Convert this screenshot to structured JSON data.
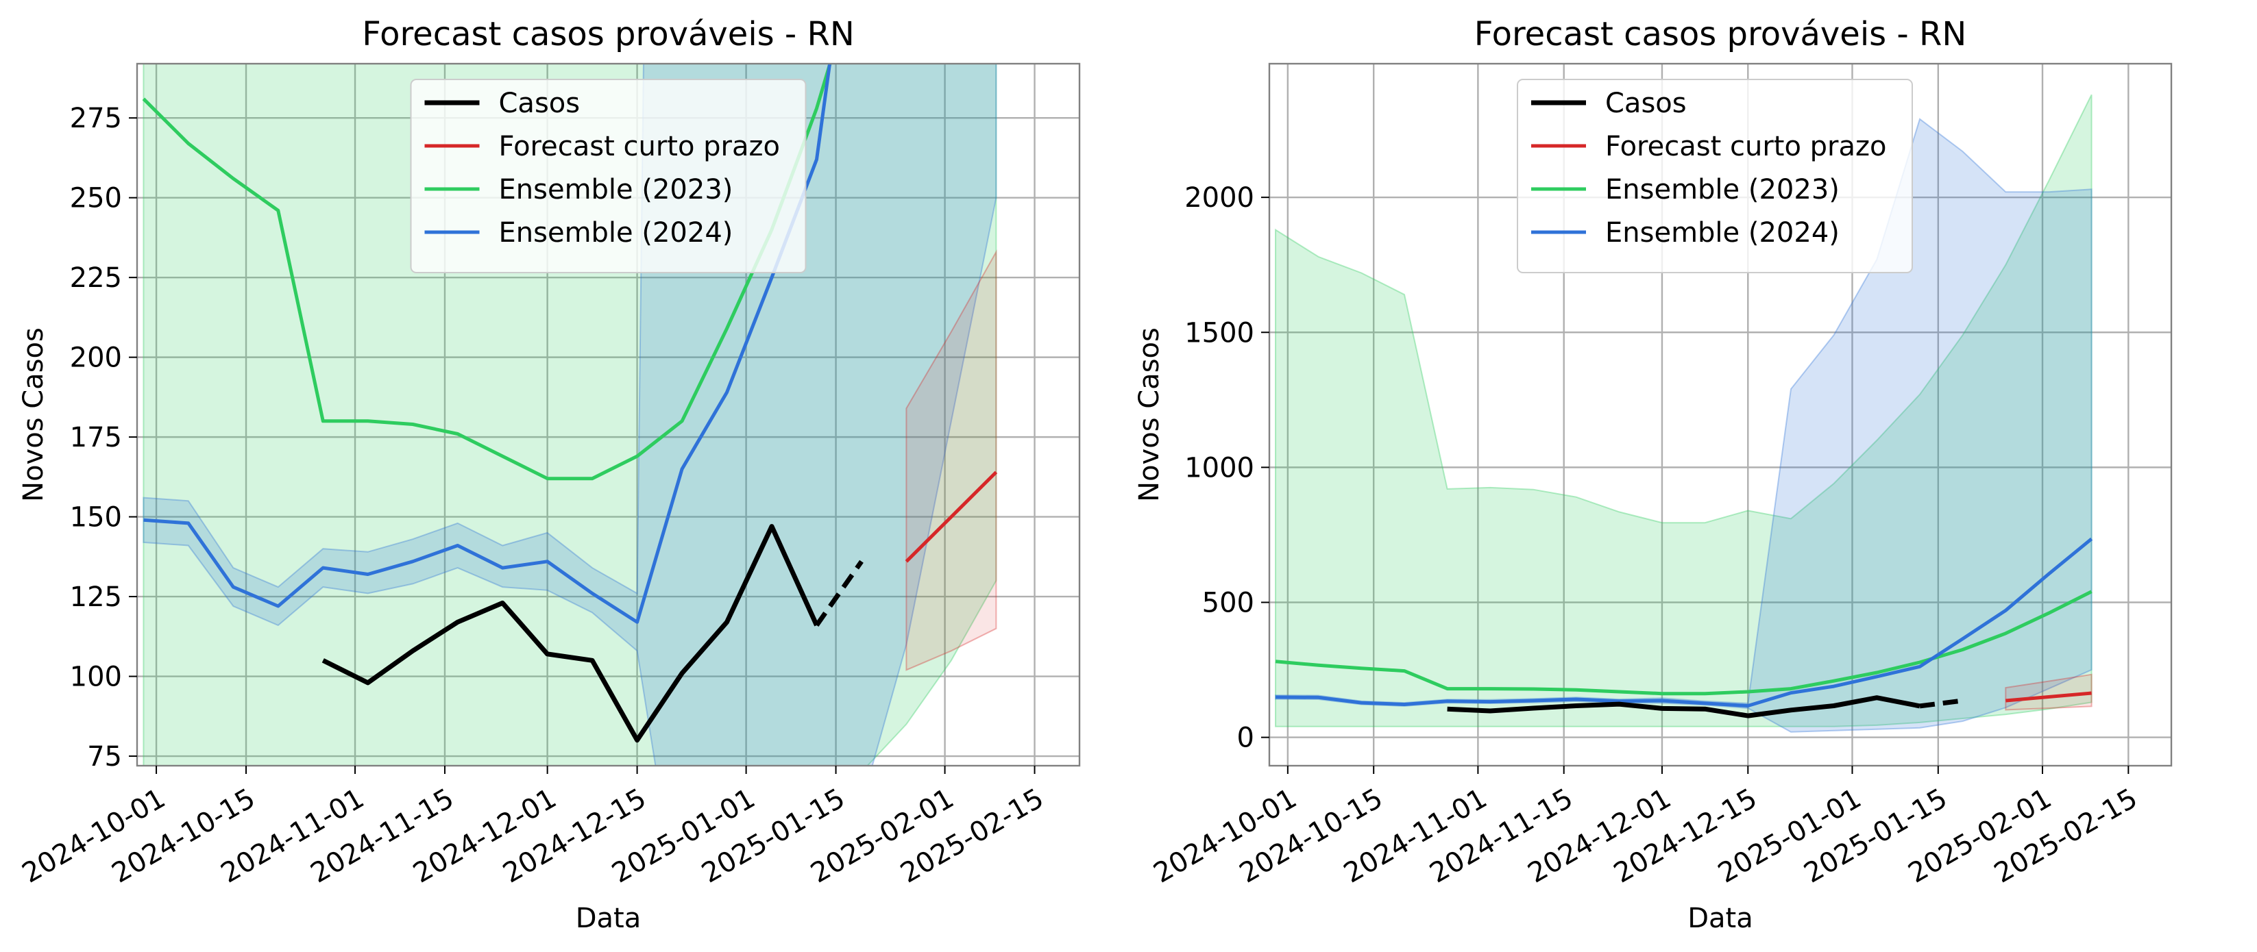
{
  "chart_data": [
    {
      "type": "line",
      "title": "Forecast casos prováveis - RN",
      "xlabel": "Data",
      "ylabel": "Novos Casos",
      "ylim": [
        72,
        292
      ],
      "xlim": [
        "2024-09-28",
        "2025-02-22"
      ],
      "x_ticks": [
        "2024-10-01",
        "2024-10-15",
        "2024-11-01",
        "2024-11-15",
        "2024-12-01",
        "2024-12-15",
        "2025-01-01",
        "2025-01-15",
        "2025-02-01",
        "2025-02-15"
      ],
      "y_ticks": [
        75,
        100,
        125,
        150,
        175,
        200,
        225,
        250,
        275
      ],
      "grid": true,
      "legend_position": "top-center",
      "legend": [
        "Casos",
        "Forecast curto prazo",
        "Ensemble (2023)",
        "Ensemble (2024)"
      ],
      "colors": {
        "casos": "#000000",
        "forecast": "#d62728",
        "ens2023": "#2ecc5f",
        "ens2024": "#2f72d8"
      },
      "series": {
        "casos": {
          "x": [
            "2024-10-27",
            "2024-11-03",
            "2024-11-10",
            "2024-11-17",
            "2024-11-24",
            "2024-12-01",
            "2024-12-08",
            "2024-12-15",
            "2024-12-22",
            "2024-12-29",
            "2025-01-05",
            "2025-01-12",
            "2025-01-19"
          ],
          "y": [
            105,
            98,
            108,
            117,
            123,
            107,
            105,
            80,
            101,
            117,
            147,
            116,
            136
          ]
        },
        "forecast": {
          "x": [
            "2025-01-26",
            "2025-02-02",
            "2025-02-09"
          ],
          "y": [
            136,
            150,
            164
          ],
          "lower": [
            102,
            108,
            115
          ],
          "upper": [
            184,
            208,
            233
          ]
        },
        "ens2023": {
          "x": [
            "2024-09-29",
            "2024-10-06",
            "2024-10-13",
            "2024-10-20",
            "2024-10-27",
            "2024-11-03",
            "2024-11-10",
            "2024-11-17",
            "2024-11-24",
            "2024-12-01",
            "2024-12-08",
            "2024-12-15",
            "2024-12-22",
            "2024-12-29",
            "2025-01-05",
            "2025-01-12",
            "2025-01-19",
            "2025-01-26",
            "2025-02-02",
            "2025-02-09"
          ],
          "y": [
            281,
            267,
            256,
            246,
            180,
            180,
            179,
            176,
            169,
            162,
            162,
            169,
            180,
            209,
            240,
            278,
            325,
            385,
            460,
            540
          ],
          "lower": [
            40,
            40,
            40,
            40,
            40,
            40,
            40,
            40,
            40,
            40,
            40,
            40,
            40,
            40,
            45,
            55,
            70,
            85,
            105,
            130
          ],
          "upper": [
            1880,
            1780,
            1720,
            1640,
            920,
            925,
            918,
            890,
            835,
            795,
            795,
            840,
            810,
            940,
            1100,
            1270,
            1490,
            1750,
            2060,
            2380
          ]
        },
        "ens2024": {
          "x": [
            "2024-09-29",
            "2024-10-06",
            "2024-10-13",
            "2024-10-20",
            "2024-10-27",
            "2024-11-03",
            "2024-11-10",
            "2024-11-17",
            "2024-11-24",
            "2024-12-01",
            "2024-12-08",
            "2024-12-15",
            "2024-12-22",
            "2024-12-29",
            "2025-01-05",
            "2025-01-12",
            "2025-01-19",
            "2025-01-26",
            "2025-02-02",
            "2025-02-09"
          ],
          "y": [
            149,
            148,
            128,
            122,
            134,
            132,
            136,
            141,
            134,
            136,
            126,
            117,
            165,
            189,
            225,
            262,
            365,
            470,
            605,
            735
          ],
          "lower": [
            142,
            141,
            122,
            116,
            128,
            126,
            129,
            134,
            128,
            127,
            120,
            108,
            20,
            25,
            30,
            35,
            60,
            110,
            180,
            250
          ],
          "upper": [
            156,
            155,
            134,
            128,
            140,
            139,
            143,
            148,
            141,
            145,
            134,
            126,
            1290,
            1490,
            1770,
            2290,
            2170,
            2020,
            2020,
            2030
          ]
        }
      }
    },
    {
      "type": "line",
      "title": "Forecast casos prováveis - RN",
      "xlabel": "Data",
      "ylabel": "Novos Casos",
      "ylim": [
        -105,
        2495
      ],
      "xlim": [
        "2024-09-28",
        "2025-02-22"
      ],
      "x_ticks": [
        "2024-10-01",
        "2024-10-15",
        "2024-11-01",
        "2024-11-15",
        "2024-12-01",
        "2024-12-15",
        "2025-01-01",
        "2025-01-15",
        "2025-02-01",
        "2025-02-15"
      ],
      "y_ticks": [
        0,
        500,
        1000,
        1500,
        2000
      ],
      "grid": true,
      "legend_position": "top-center",
      "legend": [
        "Casos",
        "Forecast curto prazo",
        "Ensemble (2023)",
        "Ensemble (2024)"
      ],
      "colors": {
        "casos": "#000000",
        "forecast": "#d62728",
        "ens2023": "#2ecc5f",
        "ens2024": "#2f72d8"
      },
      "series": "same as first chart"
    }
  ]
}
